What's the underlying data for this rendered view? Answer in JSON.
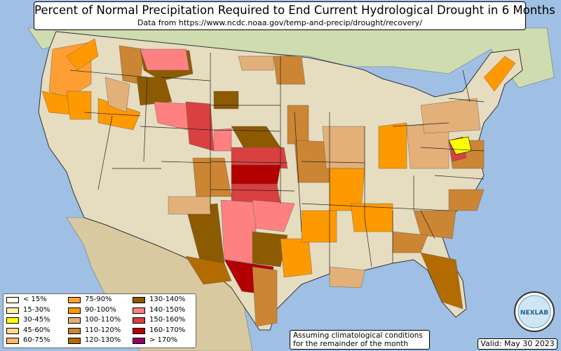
{
  "title": "Percent of Normal Precipitation Required to End Current Hydrological Drought in 6 Months",
  "subtitle": "Data from https://www.ncdc.noaa.gov/temp-and-precip/drought/recovery/",
  "assumption_line1": "Assuming climatological conditions",
  "assumption_line2": "for the remainder of the month",
  "valid": "Valid: May 30 2023",
  "logo_text": "NEXLAB",
  "colors": {
    "ocean": "#9fbfe4",
    "land": "#e6dcc0",
    "canada": "#cfdcb0",
    "mexico": "#d9c9a0"
  },
  "legend": [
    {
      "label": "< 15%",
      "color": "#fffde0"
    },
    {
      "label": "15-30%",
      "color": "#fff3b0"
    },
    {
      "label": "30-45%",
      "color": "#ffff00"
    },
    {
      "label": "45-60%",
      "color": "#ffd98a"
    },
    {
      "label": "60-75%",
      "color": "#ffb866"
    },
    {
      "label": "75-90%",
      "color": "#ff9f33"
    },
    {
      "label": "90-100%",
      "color": "#ff9900"
    },
    {
      "label": "100-110%",
      "color": "#e3b07a"
    },
    {
      "label": "110-120%",
      "color": "#cc8533"
    },
    {
      "label": "120-130%",
      "color": "#b36b00"
    },
    {
      "label": "130-140%",
      "color": "#8c5a00"
    },
    {
      "label": "140-150%",
      "color": "#ff8080"
    },
    {
      "label": "150-160%",
      "color": "#d94040"
    },
    {
      "label": "160-170%",
      "color": "#b30000"
    },
    {
      "label": "> 170%",
      "color": "#990066"
    }
  ]
}
